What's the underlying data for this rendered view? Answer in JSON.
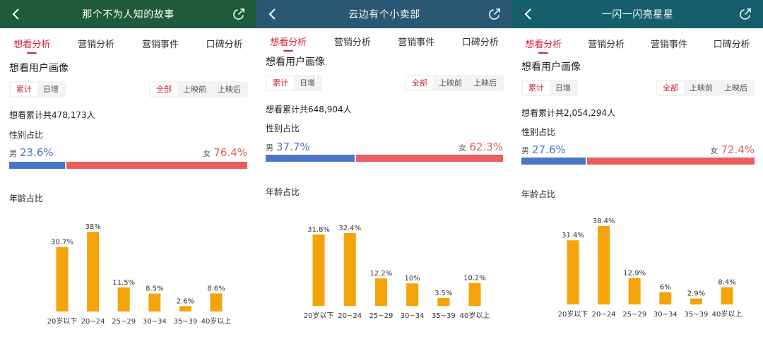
{
  "colors": {
    "topbar_1": "#1e5a3b",
    "topbar_2": "#2a5773",
    "topbar_3": "#155f6c",
    "accent": "#d2233b",
    "male": "#4a76c8",
    "female": "#ea5e60",
    "bar": "#f5a30a"
  },
  "panels": [
    {
      "title": "那个不为人知的故事",
      "tabs": [
        "想看分析",
        "营销分析",
        "营销事件",
        "口碑分析"
      ],
      "section_title": "想看用户画像",
      "mode_options": [
        "累计",
        "日增"
      ],
      "period_options": [
        "全部",
        "上映前",
        "上映后"
      ],
      "total_text": "想看累计共478,173人",
      "gender_label": "性别占比",
      "male_symbol": "男",
      "female_symbol": "女",
      "male_pct_text": "23.6%",
      "female_pct_text": "76.4%",
      "male_share": 23.6,
      "age_label": "年龄占比",
      "chart_data": {
        "type": "bar",
        "categories": [
          "20岁以下",
          "20~24",
          "25~29",
          "30~34",
          "35~39",
          "40岁以上"
        ],
        "values": [
          30.7,
          38,
          11.5,
          8.5,
          2.6,
          8.6
        ],
        "value_labels": [
          "30.7%",
          "38%",
          "11.5%",
          "8.5%",
          "2.6%",
          "8.6%"
        ]
      }
    },
    {
      "title": "云边有个小卖部",
      "tabs": [
        "想看分析",
        "营销分析",
        "营销事件",
        "口碑分析"
      ],
      "section_title": "想看用户画像",
      "mode_options": [
        "累计",
        "日增"
      ],
      "period_options": [
        "全部",
        "上映前",
        "上映后"
      ],
      "total_text": "想看累计共648,904人",
      "gender_label": "性别占比",
      "male_symbol": "男",
      "female_symbol": "女",
      "male_pct_text": "37.7%",
      "female_pct_text": "62.3%",
      "male_share": 37.7,
      "age_label": "年龄占比",
      "chart_data": {
        "type": "bar",
        "categories": [
          "20岁以下",
          "20~24",
          "25~29",
          "30~34",
          "35~39",
          "40岁以上"
        ],
        "values": [
          31.8,
          32.4,
          12.2,
          10,
          3.5,
          10.2
        ],
        "value_labels": [
          "31.8%",
          "32.4%",
          "12.2%",
          "10%",
          "3.5%",
          "10.2%"
        ]
      }
    },
    {
      "title": "一闪一闪亮星星",
      "tabs": [
        "想看分析",
        "营销分析",
        "营销事件",
        "口碑分析"
      ],
      "section_title": "想看用户画像",
      "mode_options": [
        "累计",
        "日增"
      ],
      "period_options": [
        "全部",
        "上映前",
        "上映后"
      ],
      "total_text": "想看累计共2,054,294人",
      "gender_label": "性别占比",
      "male_symbol": "男",
      "female_symbol": "女",
      "male_pct_text": "27.6%",
      "female_pct_text": "72.4%",
      "male_share": 27.6,
      "age_label": "年龄占比",
      "chart_data": {
        "type": "bar",
        "categories": [
          "20岁以下",
          "20~24",
          "25~29",
          "30~34",
          "35~39",
          "40岁以上"
        ],
        "values": [
          31.4,
          38.4,
          12.9,
          6,
          2.9,
          8.4
        ],
        "value_labels": [
          "31.4%",
          "38.4%",
          "12.9%",
          "6%",
          "2.9%",
          "8.4%"
        ]
      }
    }
  ]
}
